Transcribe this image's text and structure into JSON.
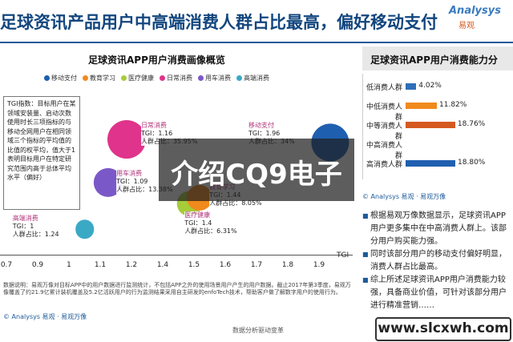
{
  "header": {
    "title": "足球资讯产品用户中高端消费人群占比最高，偏好移动支付",
    "logo": "Analysys",
    "logo_sub": "易观"
  },
  "left_chart": {
    "title": "足球资讯APP用户消费画像概览",
    "legend": [
      {
        "name": "移动支付",
        "color": "#1f5fb0"
      },
      {
        "name": "教育学习",
        "color": "#f08a1c"
      },
      {
        "name": "医疗健康",
        "color": "#a6cc3a"
      },
      {
        "name": "日常消费",
        "color": "#e0338b"
      },
      {
        "name": "用车消费",
        "color": "#7b58c8"
      },
      {
        "name": "高端消费",
        "color": "#3aa9c6"
      }
    ],
    "tgi_note": "TGI指数：目标用户在某领域安装量、启动次数使用时长三项指标的与移动全网用户在相同领域三个指标的平均值的比值的权平均，值大于1表明目标用户在特定研究范围内高于总体平均水平（偏好）",
    "footnote": "数据说明：易观万像对目标APP中的用户数据进行监测统计，不包括APP之外的使用场景用户产生的用户数据。截止2017年第3季度，易观万像覆盖了约21.9亿累计装机覆盖及5.2亿活跃用户的行为监测结果采用自主研发的enfoTech技术，帮助客户做了解数字用户的使用行为。",
    "source": "© Analysys 易观 · 易观万像",
    "x_axis_label": "TGI",
    "bubble_labels": [
      {
        "cat": "日常消费",
        "tgi": "TGI：1.16",
        "share": "人群占比：35.95%"
      },
      {
        "cat": "移动支付",
        "tgi": "TGI：1.96",
        "share": "人群占比：34%"
      },
      {
        "cat": "用车消费",
        "tgi": "TGI：1.09",
        "share": "人群占比：13.38%"
      },
      {
        "cat": "高端消费",
        "tgi": "TGI：1",
        "share": "人群占比：1.24"
      },
      {
        "cat": "医疗健康",
        "tgi": "TGI：1.4",
        "share": "人群占比：6.31%"
      },
      {
        "cat": "教育学习",
        "tgi": "TGI：1.44",
        "share": "人群占比：8.05%"
      }
    ]
  },
  "chart_data": [
    {
      "type": "scatter",
      "title": "足球资讯APP用户消费画像概览",
      "xlabel": "TGI",
      "x_ticks": [
        "0.7",
        "0.9",
        "1",
        "1.1",
        "1.2",
        "1.4",
        "1.5",
        "1.6",
        "1.7",
        "1.8",
        "1.9"
      ],
      "series": [
        {
          "name": "日常消费",
          "x": 1.16,
          "y": 35.95,
          "color": "#e0338b"
        },
        {
          "name": "移动支付",
          "x": 1.96,
          "y": 34,
          "color": "#1f5fb0"
        },
        {
          "name": "用车消费",
          "x": 1.09,
          "y": 13.38,
          "color": "#7b58c8"
        },
        {
          "name": "高端消费",
          "x": 1,
          "y": 1.24,
          "color": "#3aa9c6"
        },
        {
          "name": "医疗健康",
          "x": 1.4,
          "y": 6.31,
          "color": "#a6cc3a"
        },
        {
          "name": "教育学习",
          "x": 1.44,
          "y": 8.05,
          "color": "#f08a1c"
        }
      ]
    },
    {
      "type": "bar",
      "title": "足球资讯APP用户消费能力分",
      "categories": [
        "低消费人群",
        "中低消费人群",
        "中等消费人群",
        "中高消费人群",
        "高消费人群"
      ],
      "values": [
        4.02,
        11.82,
        18.76,
        0,
        18.8
      ],
      "value_labels": [
        "4.02%",
        "11.82%",
        "18.76%",
        "",
        "18.80%"
      ],
      "colors": [
        "#2f6fb8",
        "#f08a1c",
        "#d5591f",
        "#c0392b",
        "#1f5fb0"
      ]
    }
  ],
  "right_panel": {
    "title": "足球资讯APP用户消费能力分",
    "source": "© Analysys 易观 · 易观万像",
    "bullets": [
      "根据易观万像数据显示，足球资讯APP用户更多集中在中高消费人群上。该部分用户购买能力强。",
      "同时该部分用户的移动支付偏好明显，消费人群占比最高。",
      "综上所述足球资讯APP用户消费能力较强，具备商业价值，可针对该部分用户进行精准营销……"
    ]
  },
  "overlay": {
    "text": "介绍CQ9电子"
  },
  "watermark": {
    "text": "www.slcxwh.com"
  },
  "bottom_caption": "数据分析驱动变革"
}
